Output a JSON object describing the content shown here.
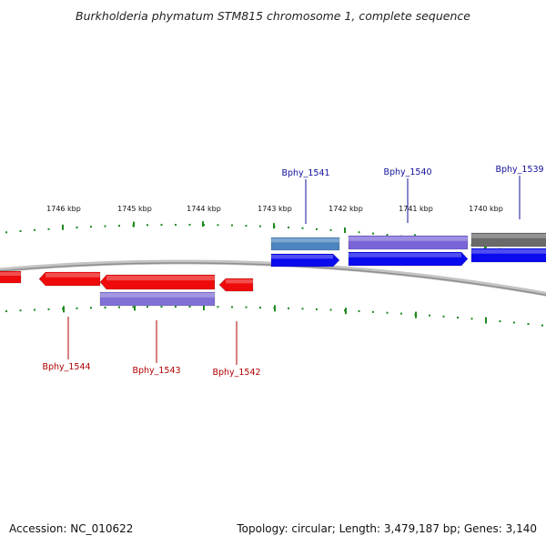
{
  "title": "Burkholderia phymatum STM815 chromosome 1, complete sequence",
  "footer": {
    "accession": "Accession: NC_010622",
    "summary": "Topology: circular; Length: 3,479,187 bp; Genes: 3,140"
  },
  "colors": {
    "backbone": "#a8a8a8",
    "tick": "#1e8a1e",
    "plus_strand": "#0a0aee",
    "minus_strand": "#ee0a0a",
    "cds_plus": "#7a64d8",
    "cds_minus": "#8070d6",
    "cds_alt": "#4c84c0",
    "cds_dark": "#6a6a6a",
    "label_plus": "#10109a",
    "label_minus": "#b00000"
  },
  "ticks": [
    {
      "label": "1746 kbp"
    },
    {
      "label": "1745 kbp"
    },
    {
      "label": "1744 kbp"
    },
    {
      "label": "1743 kbp"
    },
    {
      "label": "1742 kbp"
    },
    {
      "label": "1741 kbp"
    },
    {
      "label": "1740 kbp"
    }
  ],
  "genes_plus": [
    {
      "name": "Bphy_1541"
    },
    {
      "name": "Bphy_1540"
    },
    {
      "name": "Bphy_1539"
    }
  ],
  "genes_minus": [
    {
      "name": "Bphy_1544"
    },
    {
      "name": "Bphy_1543"
    },
    {
      "name": "Bphy_1542"
    }
  ]
}
